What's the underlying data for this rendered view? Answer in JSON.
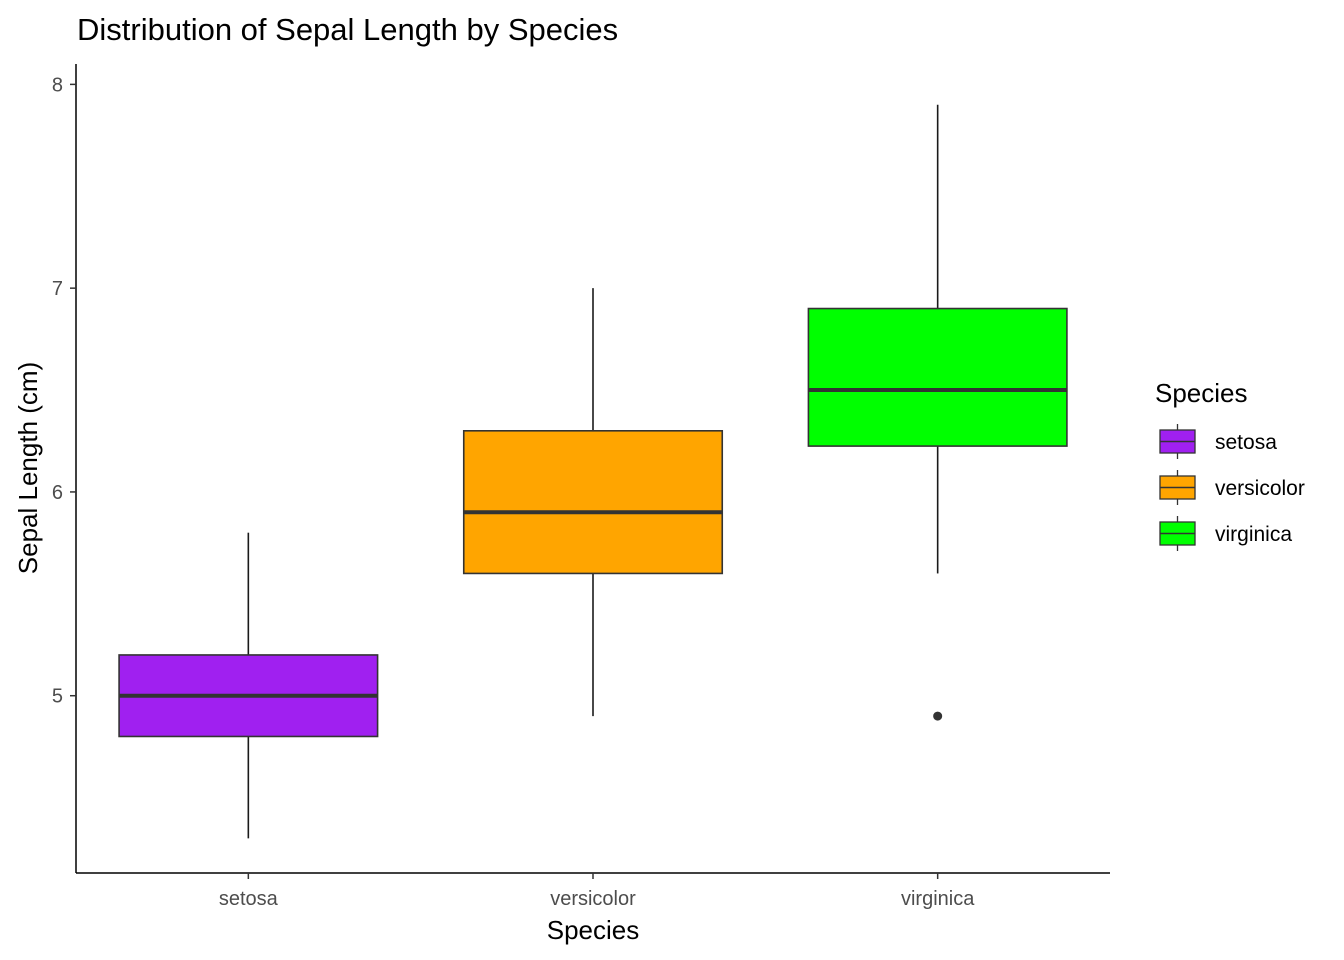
{
  "chart_data": {
    "type": "boxplot",
    "title": "Distribution of Sepal Length by Species",
    "xlabel": "Species",
    "ylabel": "Sepal Length (cm)",
    "ylim": [
      4.13,
      8.1
    ],
    "yticks": [
      "5",
      "6",
      "7",
      "8"
    ],
    "categories": [
      "setosa",
      "versicolor",
      "virginica"
    ],
    "series": [
      {
        "name": "setosa",
        "color": "#A020F0",
        "min": 4.3,
        "q1": 4.8,
        "median": 5.0,
        "q3": 5.2,
        "max": 5.8,
        "outliers": []
      },
      {
        "name": "versicolor",
        "color": "#FFA500",
        "min": 4.9,
        "q1": 5.6,
        "median": 5.9,
        "q3": 6.3,
        "max": 7.0,
        "outliers": []
      },
      {
        "name": "virginica",
        "color": "#00FF00",
        "min": 5.6,
        "q1": 6.225,
        "median": 6.5,
        "q3": 6.9,
        "max": 7.9,
        "outliers": [
          4.9
        ]
      }
    ],
    "grid": false,
    "legend": {
      "title": "Species",
      "position": "right",
      "items": [
        "setosa",
        "versicolor",
        "virginica"
      ]
    }
  }
}
